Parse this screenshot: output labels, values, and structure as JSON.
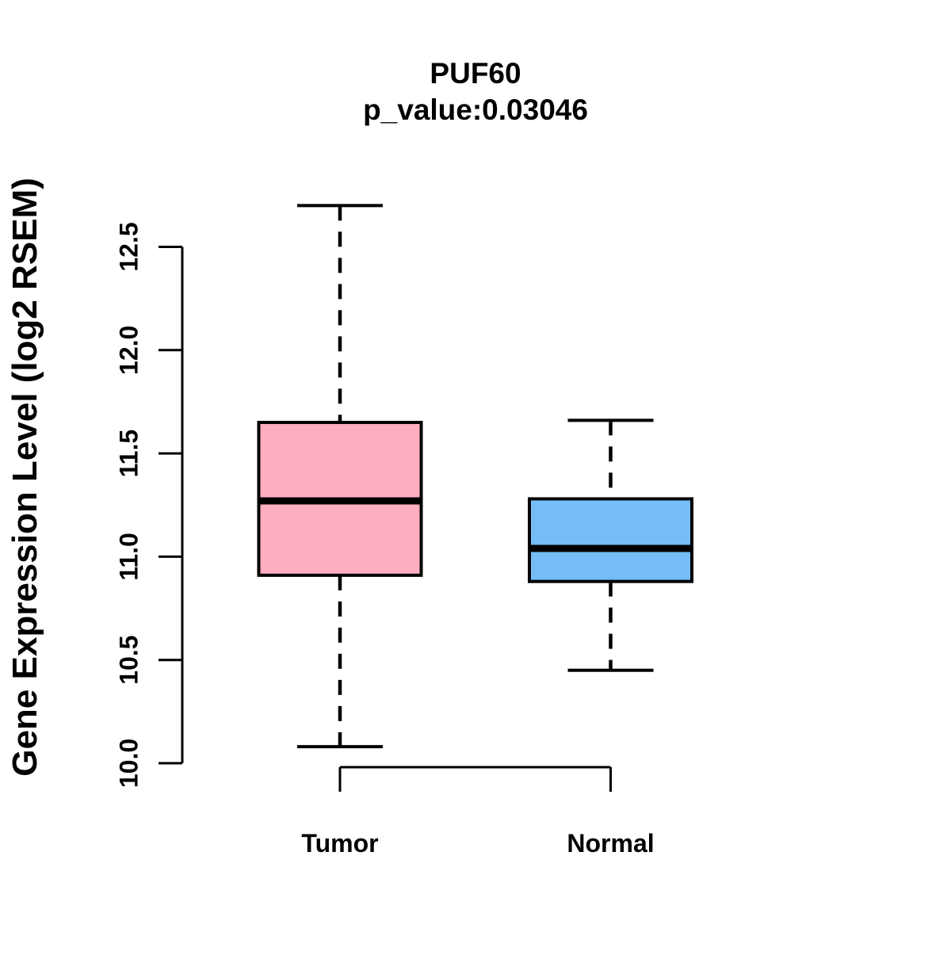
{
  "chart_data": {
    "type": "boxplot",
    "title": "PUF60",
    "subtitle": "p_value:0.03046",
    "gene": "PUF60",
    "p_value": 0.03046,
    "ylabel": "Gene Expression Level (log2 RSEM)",
    "ylim": [
      10.0,
      12.5
    ],
    "yticks": [
      10.0,
      10.5,
      11.0,
      11.5,
      12.0,
      12.5
    ],
    "ytick_labels": [
      "10.0",
      "10.5",
      "11.0",
      "11.5",
      "12.0",
      "12.5"
    ],
    "grid": false,
    "legend": "none",
    "groups": [
      {
        "name": "Tumor",
        "fill": "#FFAEC1",
        "whisker_low": 10.08,
        "q1": 10.91,
        "median": 11.27,
        "q3": 11.65,
        "whisker_high": 12.7
      },
      {
        "name": "Normal",
        "fill": "#75BDF6",
        "whisker_low": 10.45,
        "q1": 10.88,
        "median": 11.04,
        "q3": 11.28,
        "whisker_high": 11.66
      }
    ],
    "colors": {
      "axis": "#000000",
      "box_border": "#000000",
      "background": "#ffffff"
    }
  }
}
